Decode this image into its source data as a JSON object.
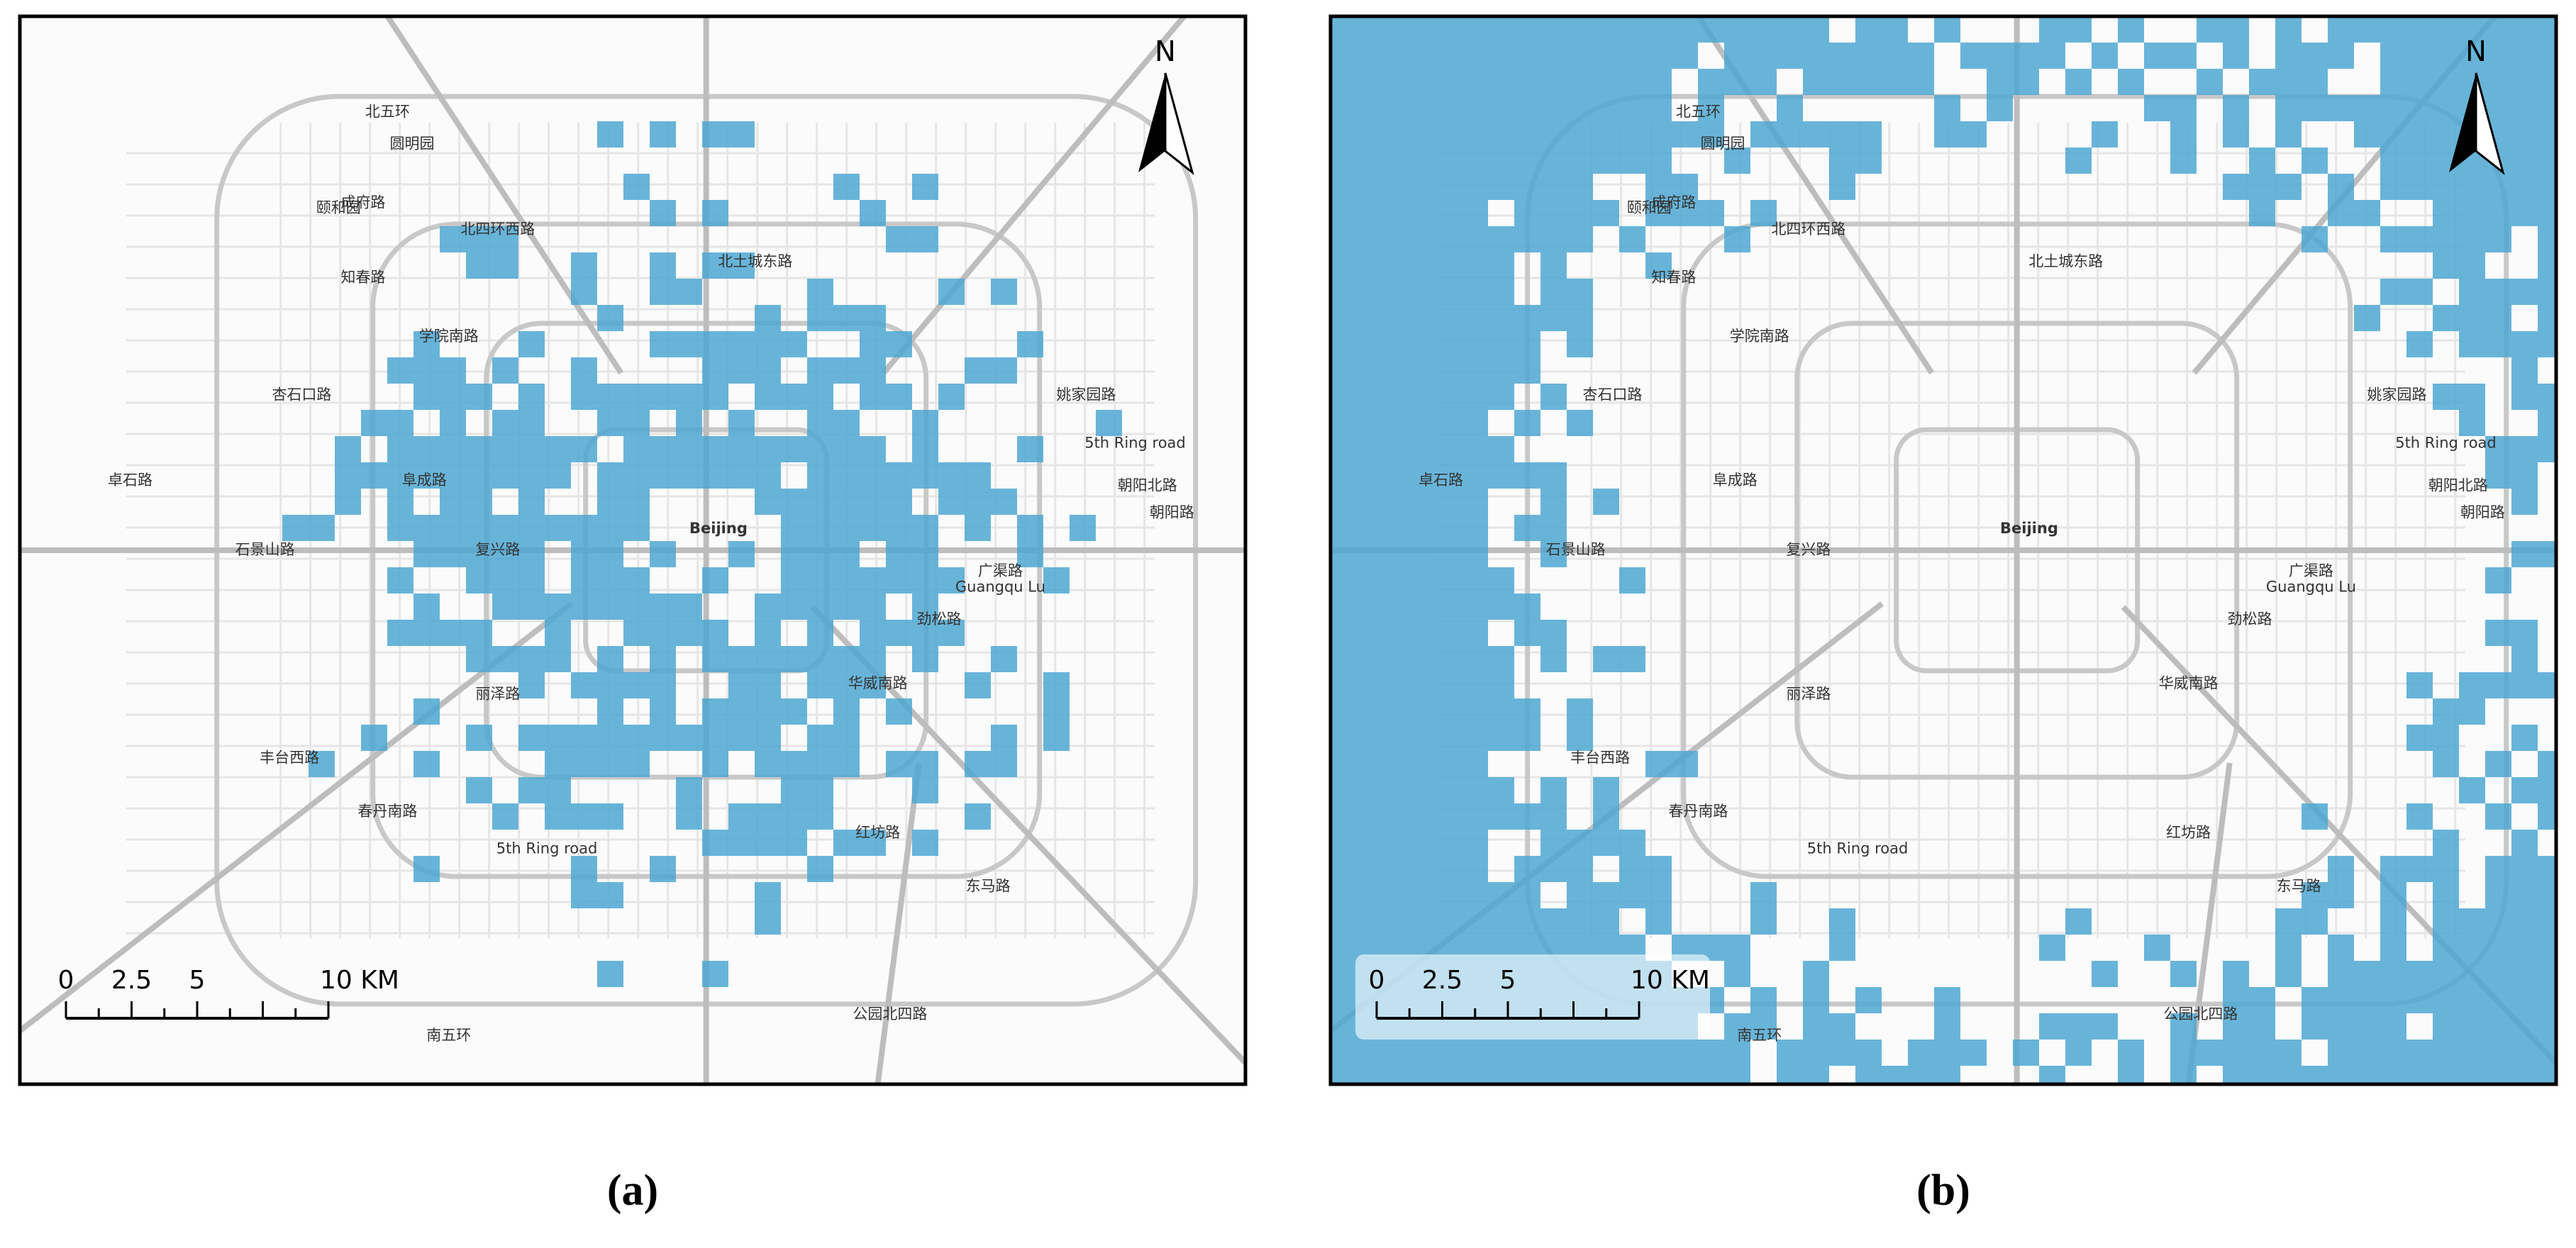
{
  "map_labels": {
    "north": "N",
    "scale": [
      "0",
      "2.5",
      "5",
      "10 KM"
    ],
    "places": [
      "Beijing",
      "Guangqu Lu",
      "5th Ring road",
      "5th Ring road",
      "阜成路",
      "复兴路",
      "朝阳北路",
      "朝阳路",
      "学院南路",
      "丽泽路",
      "颐和园",
      "圆明园",
      "北五环",
      "南五环",
      "北四环西路",
      "北土城东路",
      "石景山路",
      "广渠路",
      "劲松路",
      "华威南路",
      "红坊路",
      "东马路",
      "公园北四路",
      "春丹南路",
      "丰台西路",
      "卓石路",
      "姚家园路",
      "知春路",
      "杏石口路",
      "成府路"
    ]
  },
  "panels": [
    {
      "label": "(a)"
    },
    {
      "label": "(b)"
    }
  ]
}
